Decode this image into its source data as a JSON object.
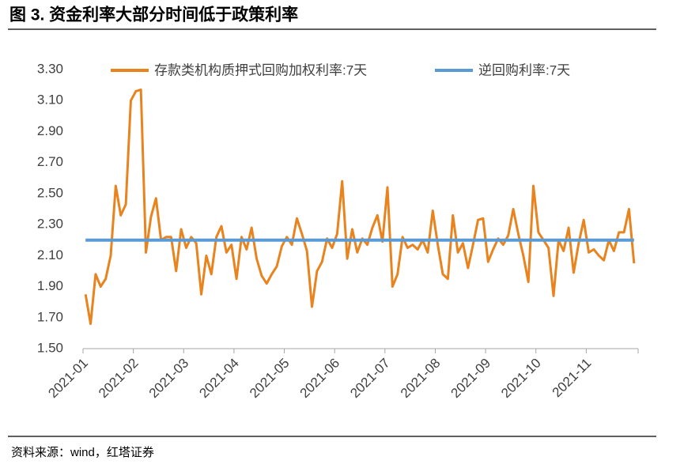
{
  "chart_data": {
    "type": "line",
    "title": "图 3. 资金利率大部分时间低于政策利率",
    "source": "资料来源：wind，红塔证券",
    "categories": [
      "2021-01",
      null,
      null,
      null,
      null,
      null,
      null,
      null,
      null,
      null,
      "2021-02",
      null,
      null,
      null,
      null,
      null,
      null,
      null,
      null,
      null,
      "2021-03",
      null,
      null,
      null,
      null,
      null,
      null,
      null,
      null,
      null,
      "2021-04",
      null,
      null,
      null,
      null,
      null,
      null,
      null,
      null,
      null,
      "2021-05",
      null,
      null,
      null,
      null,
      null,
      null,
      null,
      null,
      null,
      "2021-06",
      null,
      null,
      null,
      null,
      null,
      null,
      null,
      null,
      null,
      "2021-07",
      null,
      null,
      null,
      null,
      null,
      null,
      null,
      null,
      null,
      "2021-08",
      null,
      null,
      null,
      null,
      null,
      null,
      null,
      null,
      null,
      "2021-09",
      null,
      null,
      null,
      null,
      null,
      null,
      null,
      null,
      null,
      "2021-10",
      null,
      null,
      null,
      null,
      null,
      null,
      null,
      null,
      null,
      "2021-11",
      null,
      null,
      null,
      null,
      null,
      null,
      null,
      null,
      null
    ],
    "series": [
      {
        "name": "存款类机构质押式回购加权利率:7天",
        "color": "#e8831e",
        "values": [
          1.85,
          1.66,
          1.98,
          1.9,
          1.95,
          2.1,
          2.55,
          2.36,
          2.43,
          3.1,
          3.16,
          3.17,
          2.12,
          2.35,
          2.47,
          2.2,
          2.22,
          2.22,
          2.0,
          2.27,
          2.15,
          2.22,
          2.18,
          1.85,
          2.1,
          1.98,
          2.22,
          2.29,
          2.12,
          2.17,
          1.95,
          2.22,
          2.14,
          2.28,
          2.08,
          1.97,
          1.92,
          1.98,
          2.03,
          2.16,
          2.22,
          2.17,
          2.34,
          2.24,
          2.13,
          1.77,
          2.0,
          2.06,
          2.21,
          2.15,
          2.24,
          2.58,
          2.08,
          2.27,
          2.12,
          2.21,
          2.17,
          2.28,
          2.36,
          2.19,
          2.54,
          1.9,
          1.98,
          2.22,
          2.15,
          2.17,
          2.14,
          2.2,
          2.12,
          2.39,
          2.17,
          1.98,
          1.95,
          2.36,
          2.12,
          2.18,
          2.02,
          2.17,
          2.33,
          2.34,
          2.06,
          2.14,
          2.21,
          2.17,
          2.23,
          2.4,
          2.24,
          2.1,
          1.93,
          2.55,
          2.25,
          2.2,
          2.15,
          1.84,
          2.2,
          2.13,
          2.28,
          1.99,
          2.18,
          2.33,
          2.12,
          2.14,
          2.1,
          2.07,
          2.2,
          2.13,
          2.25,
          2.25,
          2.4,
          2.05
        ]
      },
      {
        "name": "逆回购利率:7天",
        "color": "#5b9bd5",
        "values": [
          2.2,
          2.2,
          2.2,
          2.2,
          2.2,
          2.2,
          2.2,
          2.2,
          2.2,
          2.2,
          2.2,
          2.2,
          2.2,
          2.2,
          2.2,
          2.2,
          2.2,
          2.2,
          2.2,
          2.2,
          2.2,
          2.2,
          2.2,
          2.2,
          2.2,
          2.2,
          2.2,
          2.2,
          2.2,
          2.2,
          2.2,
          2.2,
          2.2,
          2.2,
          2.2,
          2.2,
          2.2,
          2.2,
          2.2,
          2.2,
          2.2,
          2.2,
          2.2,
          2.2,
          2.2,
          2.2,
          2.2,
          2.2,
          2.2,
          2.2,
          2.2,
          2.2,
          2.2,
          2.2,
          2.2,
          2.2,
          2.2,
          2.2,
          2.2,
          2.2,
          2.2,
          2.2,
          2.2,
          2.2,
          2.2,
          2.2,
          2.2,
          2.2,
          2.2,
          2.2,
          2.2,
          2.2,
          2.2,
          2.2,
          2.2,
          2.2,
          2.2,
          2.2,
          2.2,
          2.2,
          2.2,
          2.2,
          2.2,
          2.2,
          2.2,
          2.2,
          2.2,
          2.2,
          2.2,
          2.2,
          2.2,
          2.2,
          2.2,
          2.2,
          2.2,
          2.2,
          2.2,
          2.2,
          2.2,
          2.2,
          2.2,
          2.2,
          2.2,
          2.2,
          2.2,
          2.2,
          2.2,
          2.2,
          2.2,
          2.2
        ]
      }
    ],
    "ylim": [
      1.5,
      3.3
    ],
    "yticks": [
      {
        "value": 1.5,
        "label": "1.50"
      },
      {
        "value": 1.7,
        "label": "1.70"
      },
      {
        "value": 1.9,
        "label": "1.90"
      },
      {
        "value": 2.1,
        "label": "2.10"
      },
      {
        "value": 2.3,
        "label": "2.30"
      },
      {
        "value": 2.5,
        "label": "2.50"
      },
      {
        "value": 2.7,
        "label": "2.70"
      },
      {
        "value": 2.9,
        "label": "2.90"
      },
      {
        "value": 3.1,
        "label": "3.10"
      },
      {
        "value": 3.3,
        "label": "3.30"
      }
    ]
  }
}
